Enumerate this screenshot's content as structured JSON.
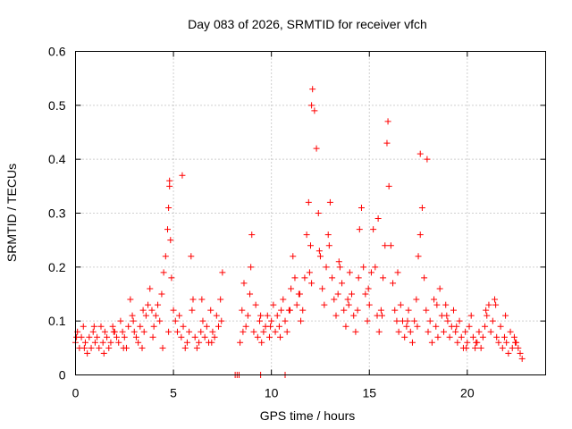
{
  "chart_data": {
    "type": "scatter",
    "title": "Day 083 of 2026, SRMTID for receiver vfch",
    "xlabel": "GPS time / hours",
    "ylabel": "SRMTID / TECUs",
    "xlim": [
      0,
      24
    ],
    "ylim": [
      0,
      0.6
    ],
    "xticks": [
      0,
      5,
      10,
      15,
      20
    ],
    "xtick_labels": [
      "0",
      "5",
      "10",
      "15",
      "20"
    ],
    "yticks": [
      0,
      0.1,
      0.2,
      0.3,
      0.4,
      0.5,
      0.6
    ],
    "ytick_labels": [
      "0",
      "0.1",
      "0.2",
      "0.3",
      "0.4",
      "0.5",
      "0.6"
    ],
    "grid": true,
    "marker": "+",
    "color": "#ff0000",
    "series": [
      {
        "name": "vfch",
        "x": [
          0.0,
          0.1,
          0.2,
          0.3,
          0.4,
          0.5,
          0.6,
          0.7,
          0.8,
          0.9,
          1.0,
          1.1,
          1.2,
          1.3,
          1.4,
          1.5,
          1.6,
          1.7,
          1.8,
          1.9,
          2.0,
          2.1,
          2.2,
          2.3,
          2.4,
          2.5,
          2.6,
          2.7,
          2.8,
          2.9,
          3.0,
          3.1,
          3.2,
          3.3,
          3.4,
          3.5,
          3.6,
          3.7,
          3.8,
          3.9,
          4.0,
          4.1,
          4.2,
          4.3,
          4.4,
          4.5,
          4.6,
          4.7,
          4.75,
          4.8,
          4.85,
          4.9,
          5.0,
          5.1,
          5.2,
          5.3,
          5.4,
          5.5,
          5.6,
          5.7,
          5.8,
          5.9,
          6.0,
          6.1,
          6.2,
          6.3,
          6.4,
          6.5,
          6.6,
          6.7,
          6.8,
          6.9,
          7.0,
          7.1,
          7.2,
          7.3,
          7.4,
          7.5,
          8.4,
          8.5,
          8.6,
          8.7,
          8.8,
          8.9,
          9.0,
          9.1,
          9.2,
          9.3,
          9.4,
          9.5,
          9.6,
          9.7,
          9.8,
          9.9,
          10.0,
          10.1,
          10.2,
          10.3,
          10.4,
          10.5,
          10.6,
          10.7,
          10.8,
          10.9,
          11.0,
          11.1,
          11.2,
          11.3,
          11.4,
          11.5,
          11.6,
          11.7,
          11.8,
          11.9,
          12.0,
          12.05,
          12.1,
          12.2,
          12.3,
          12.4,
          12.5,
          12.6,
          12.7,
          12.8,
          12.9,
          13.0,
          13.1,
          13.2,
          13.3,
          13.4,
          13.5,
          13.6,
          13.7,
          13.8,
          13.9,
          14.0,
          14.1,
          14.2,
          14.3,
          14.4,
          14.5,
          14.6,
          14.7,
          14.8,
          14.9,
          15.0,
          15.1,
          15.2,
          15.3,
          15.4,
          15.5,
          15.6,
          15.7,
          15.8,
          15.9,
          16.0,
          16.1,
          16.2,
          16.3,
          16.4,
          16.5,
          16.6,
          16.7,
          16.8,
          16.9,
          17.0,
          17.1,
          17.2,
          17.3,
          17.4,
          17.5,
          17.6,
          17.7,
          17.8,
          17.9,
          18.0,
          18.1,
          18.2,
          18.3,
          18.4,
          18.5,
          18.6,
          18.7,
          18.8,
          18.9,
          19.0,
          19.1,
          19.2,
          19.3,
          19.4,
          19.5,
          19.6,
          19.7,
          19.8,
          19.9,
          20.0,
          20.1,
          20.2,
          20.3,
          20.4,
          20.5,
          20.6,
          20.7,
          20.8,
          20.9,
          21.0,
          21.1,
          21.2,
          21.3,
          21.4,
          21.5,
          21.6,
          21.7,
          21.8,
          21.9,
          22.0,
          22.1,
          22.2,
          22.3,
          22.4,
          22.5,
          22.6,
          22.7,
          22.8,
          0.05,
          0.45,
          0.95,
          1.45,
          1.95,
          2.45,
          2.95,
          3.45,
          3.95,
          4.45,
          4.75,
          4.8,
          5.45,
          5.95,
          6.45,
          6.95,
          7.45,
          8.55,
          8.95,
          9.45,
          9.95,
          10.45,
          10.95,
          11.45,
          11.95,
          12.05,
          12.45,
          12.95,
          13.45,
          13.95,
          14.45,
          14.95,
          15.45,
          15.65,
          15.95,
          16.45,
          16.95,
          17.45,
          17.6,
          17.95,
          18.45,
          18.95,
          19.45,
          19.95,
          20.45,
          20.95,
          21.45,
          21.95,
          22.45,
          8.15,
          8.25,
          8.35,
          9.45,
          10.7
        ],
        "y": [
          0.06,
          0.08,
          0.05,
          0.07,
          0.09,
          0.06,
          0.04,
          0.07,
          0.05,
          0.08,
          0.06,
          0.07,
          0.05,
          0.09,
          0.06,
          0.08,
          0.07,
          0.05,
          0.06,
          0.09,
          0.08,
          0.07,
          0.06,
          0.1,
          0.08,
          0.07,
          0.05,
          0.09,
          0.14,
          0.11,
          0.08,
          0.07,
          0.06,
          0.09,
          0.05,
          0.08,
          0.11,
          0.13,
          0.16,
          0.12,
          0.09,
          0.11,
          0.13,
          0.1,
          0.15,
          0.19,
          0.22,
          0.27,
          0.31,
          0.36,
          0.25,
          0.18,
          0.12,
          0.1,
          0.08,
          0.11,
          0.07,
          0.09,
          0.05,
          0.06,
          0.08,
          0.22,
          0.14,
          0.07,
          0.05,
          0.06,
          0.08,
          0.1,
          0.07,
          0.09,
          0.06,
          0.12,
          0.08,
          0.07,
          0.11,
          0.09,
          0.14,
          0.19,
          0.06,
          0.12,
          0.17,
          0.09,
          0.11,
          0.15,
          0.26,
          0.08,
          0.13,
          0.07,
          0.1,
          0.06,
          0.08,
          0.09,
          0.11,
          0.07,
          0.1,
          0.13,
          0.08,
          0.11,
          0.09,
          0.12,
          0.14,
          0.1,
          0.08,
          0.12,
          0.16,
          0.22,
          0.18,
          0.13,
          0.15,
          0.1,
          0.12,
          0.18,
          0.26,
          0.32,
          0.24,
          0.17,
          0.53,
          0.49,
          0.42,
          0.3,
          0.22,
          0.16,
          0.13,
          0.2,
          0.26,
          0.32,
          0.18,
          0.14,
          0.11,
          0.15,
          0.2,
          0.17,
          0.12,
          0.09,
          0.14,
          0.19,
          0.15,
          0.11,
          0.08,
          0.12,
          0.27,
          0.31,
          0.2,
          0.15,
          0.1,
          0.13,
          0.19,
          0.27,
          0.2,
          0.11,
          0.08,
          0.12,
          0.18,
          0.24,
          0.43,
          0.35,
          0.24,
          0.17,
          0.12,
          0.1,
          0.08,
          0.13,
          0.1,
          0.07,
          0.09,
          0.12,
          0.08,
          0.06,
          0.1,
          0.14,
          0.22,
          0.41,
          0.31,
          0.18,
          0.12,
          0.08,
          0.1,
          0.06,
          0.14,
          0.09,
          0.07,
          0.16,
          0.11,
          0.08,
          0.13,
          0.1,
          0.07,
          0.09,
          0.12,
          0.08,
          0.06,
          0.1,
          0.07,
          0.05,
          0.08,
          0.06,
          0.09,
          0.11,
          0.07,
          0.05,
          0.06,
          0.08,
          0.05,
          0.07,
          0.09,
          0.11,
          0.13,
          0.08,
          0.1,
          0.14,
          0.07,
          0.06,
          0.09,
          0.05,
          0.07,
          0.06,
          0.04,
          0.08,
          0.05,
          0.07,
          0.06,
          0.05,
          0.04,
          0.03,
          0.07,
          0.05,
          0.09,
          0.04,
          0.08,
          0.05,
          0.1,
          0.12,
          0.07,
          0.05,
          0.08,
          0.35,
          0.37,
          0.12,
          0.14,
          0.06,
          0.1,
          0.08,
          0.2,
          0.11,
          0.09,
          0.07,
          0.12,
          0.15,
          0.19,
          0.5,
          0.23,
          0.24,
          0.21,
          0.13,
          0.18,
          0.16,
          0.29,
          0.11,
          0.47,
          0.19,
          0.1,
          0.09,
          0.26,
          0.4,
          0.13,
          0.11,
          0.09,
          0.05,
          0.06,
          0.12,
          0.13,
          0.11,
          0.06,
          0.0,
          0.0,
          0.0,
          0.0,
          0.0
        ]
      }
    ]
  }
}
